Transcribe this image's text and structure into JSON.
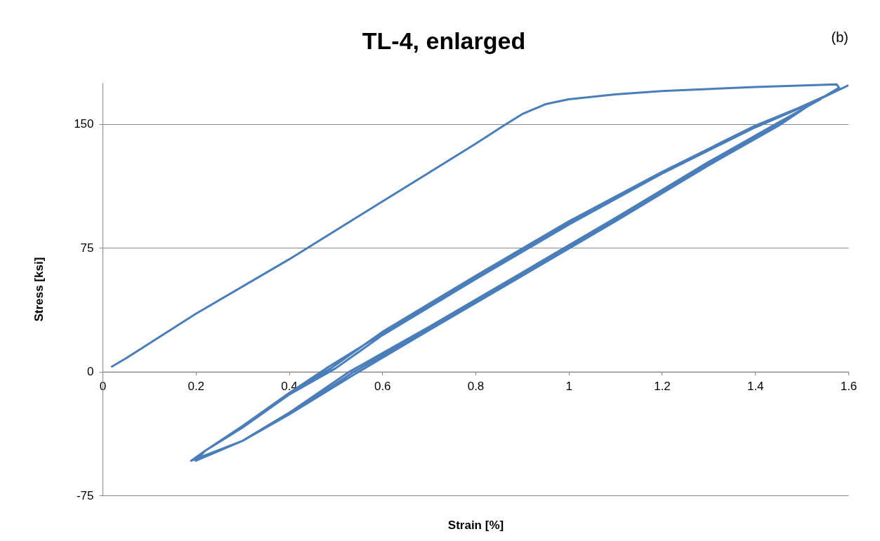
{
  "chart_data": {
    "type": "line",
    "title": "TL-4, enlarged",
    "xlabel": "Strain [%]",
    "ylabel": "Stress [ksi]",
    "annotations": [
      "(b)"
    ],
    "xlim": [
      0,
      1.6
    ],
    "ylim": [
      -75,
      175
    ],
    "xticks": [
      0,
      0.2,
      0.4,
      0.6,
      0.8,
      1,
      1.2,
      1.4,
      1.6
    ],
    "yticks": [
      -75,
      0,
      75,
      150
    ],
    "grid": "y",
    "line_style": "solid",
    "series": [
      {
        "color": "#4a7ebb",
        "x": [
          0.02,
          0.05,
          0.2,
          0.4,
          0.6,
          0.8,
          0.86,
          0.9,
          0.95,
          1.0,
          1.1,
          1.2,
          1.4,
          1.575,
          1.58,
          1.55,
          1.4,
          1.2,
          1.0,
          0.8,
          0.6,
          0.48,
          0.4,
          0.3,
          0.22,
          0.2,
          0.3,
          0.4,
          0.54,
          0.7,
          0.9,
          1.1,
          1.3,
          1.45,
          1.53,
          1.4,
          1.2,
          1.0,
          0.8,
          0.6,
          0.49,
          0.4,
          0.3,
          0.22,
          0.19,
          0.3,
          0.4,
          0.53,
          0.7,
          0.9,
          1.1,
          1.3,
          1.45,
          1.54,
          1.4,
          1.2,
          1.0,
          0.8,
          0.6,
          0.5,
          0.4,
          0.3,
          0.22,
          0.2,
          0.3,
          0.4,
          0.55,
          0.7,
          0.9,
          1.1,
          1.3,
          1.45,
          1.53,
          1.6
        ],
        "values": [
          3,
          8,
          35,
          68,
          103,
          138,
          149,
          156,
          162,
          165,
          168,
          170,
          172.5,
          174,
          172,
          167,
          148,
          120,
          90,
          57,
          23,
          2,
          -13,
          -33,
          -48,
          -54,
          -42,
          -26,
          0,
          26,
          59,
          92,
          126,
          150,
          164,
          149,
          121,
          91,
          58,
          24,
          2,
          -13,
          -33,
          -48,
          -54,
          -42,
          -25,
          0,
          27,
          60,
          93,
          127,
          151,
          165,
          148,
          120,
          89,
          56,
          22,
          2,
          -14,
          -34,
          -48,
          -53,
          -42,
          -26,
          0,
          25,
          58,
          91,
          125,
          149,
          164,
          173.5
        ]
      }
    ]
  }
}
